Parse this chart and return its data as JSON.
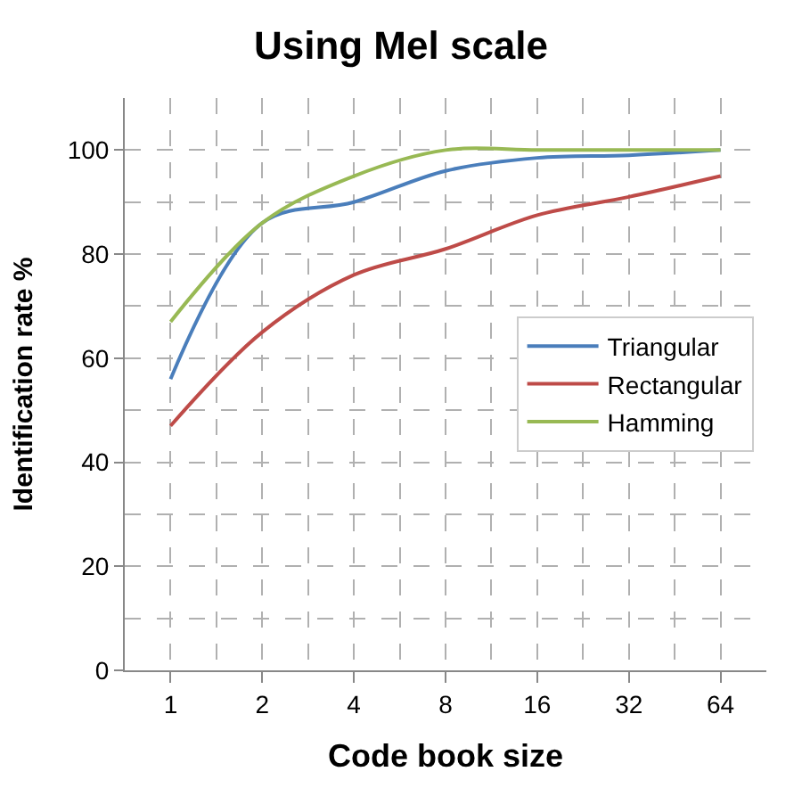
{
  "chart_data": {
    "type": "line",
    "title": "Using Mel scale",
    "xlabel": "Code book size",
    "ylabel": "Identification rate %",
    "categories": [
      "1",
      "2",
      "4",
      "8",
      "16",
      "32",
      "64"
    ],
    "series": [
      {
        "name": "Triangular",
        "color": "#4a7ebb",
        "values": [
          56,
          86,
          90,
          96,
          98.5,
          99,
          100
        ]
      },
      {
        "name": "Rectangular",
        "color": "#be4b48",
        "values": [
          47,
          65,
          76,
          81,
          87.5,
          91,
          95
        ]
      },
      {
        "name": "Hamming",
        "color": "#98b954",
        "values": [
          67,
          86,
          95,
          100,
          100,
          100,
          100
        ]
      }
    ],
    "ylim": [
      0,
      110
    ],
    "yticks": [
      0,
      20,
      40,
      60,
      80,
      100
    ],
    "grid": true,
    "legend": "right",
    "marker": "none",
    "line_style": "solid"
  }
}
